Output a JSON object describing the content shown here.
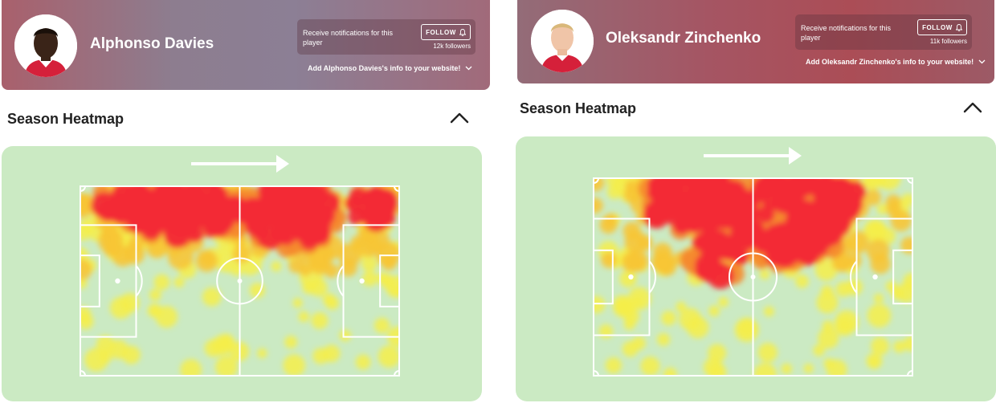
{
  "panels": [
    {
      "player_name": "Alphonso Davies",
      "notify_text": "Receive notifications for this player",
      "follow_label": "FOLLOW",
      "followers": "12k followers",
      "website_link": "Add Alphonso Davies's info to your website!",
      "section_title": "Season Heatmap",
      "colors": {
        "header_accent": "#a9606c",
        "card": "#cbeac3"
      }
    },
    {
      "player_name": "Oleksandr Zinchenko",
      "notify_text": "Receive notifications for this player",
      "follow_label": "FOLLOW",
      "followers": "11k followers",
      "website_link": "Add Oleksandr Zinchenko's info to your website!",
      "section_title": "Season Heatmap",
      "colors": {
        "header_accent": "#ab4d56",
        "card": "#cbeac3"
      }
    }
  ],
  "icons": {
    "bell": "bell-icon",
    "chevron_down": "chevron-down-icon",
    "chevron_up": "chevron-up-icon",
    "direction_arrow": "arrow-right-icon"
  }
}
